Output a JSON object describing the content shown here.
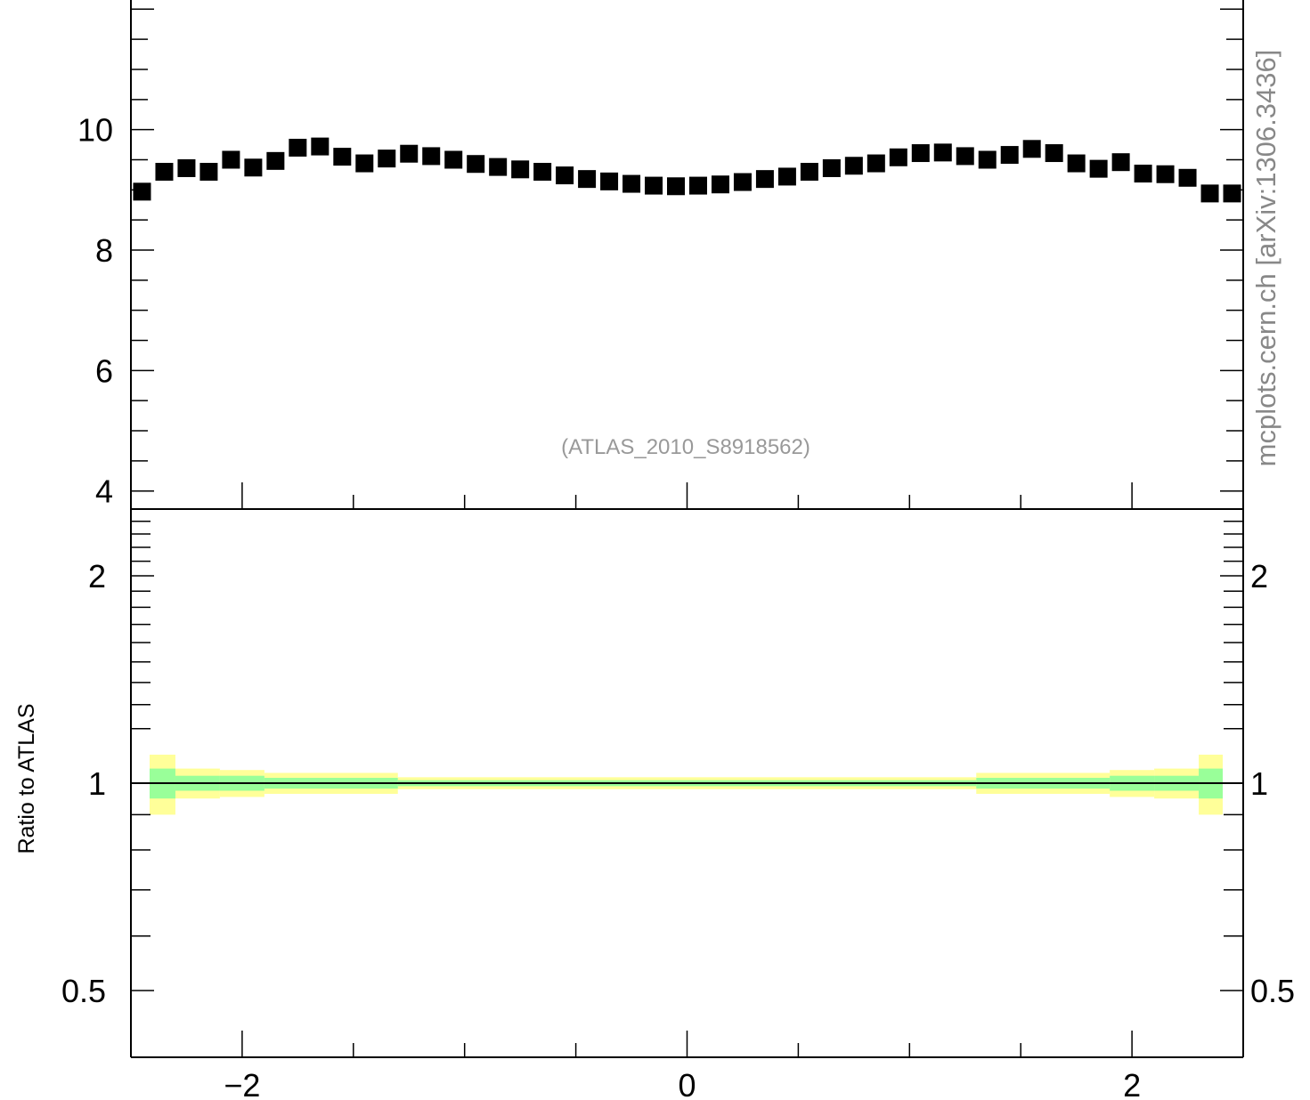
{
  "watermark": "mcplots.cern.ch [arXiv:1306.3436]",
  "analysis_label": "(ATLAS_2010_S8918562)",
  "chart_data": [
    {
      "type": "scatter",
      "panel": "main",
      "xlim": [
        -2.5,
        2.5
      ],
      "ylim": [
        3.7,
        12.3
      ],
      "yticks_major": [
        4,
        6,
        8,
        10
      ],
      "series": [
        {
          "marker": "square",
          "color": "#000000",
          "x": [
            -2.45,
            -2.35,
            -2.25,
            -2.15,
            -2.05,
            -1.95,
            -1.85,
            -1.75,
            -1.65,
            -1.55,
            -1.45,
            -1.35,
            -1.25,
            -1.15,
            -1.05,
            -0.95,
            -0.85,
            -0.75,
            -0.65,
            -0.55,
            -0.45,
            -0.35,
            -0.25,
            -0.15,
            -0.05,
            0.05,
            0.15,
            0.25,
            0.35,
            0.45,
            0.55,
            0.65,
            0.75,
            0.85,
            0.95,
            1.05,
            1.15,
            1.25,
            1.35,
            1.45,
            1.55,
            1.65,
            1.75,
            1.85,
            1.95,
            2.05,
            2.15,
            2.25,
            2.35,
            2.45
          ],
          "y": [
            8.97,
            9.3,
            9.36,
            9.3,
            9.5,
            9.37,
            9.48,
            9.7,
            9.72,
            9.55,
            9.44,
            9.52,
            9.6,
            9.56,
            9.5,
            9.43,
            9.38,
            9.34,
            9.3,
            9.24,
            9.18,
            9.14,
            9.1,
            9.07,
            9.06,
            9.07,
            9.09,
            9.13,
            9.18,
            9.22,
            9.3,
            9.36,
            9.4,
            9.44,
            9.54,
            9.61,
            9.62,
            9.56,
            9.5,
            9.58,
            9.68,
            9.61,
            9.44,
            9.35,
            9.46,
            9.27,
            9.26,
            9.2,
            8.94,
            8.94
          ]
        }
      ]
    },
    {
      "type": "area",
      "panel": "ratio",
      "ylabel": "Ratio to ATLAS",
      "xlim": [
        -2.5,
        2.5
      ],
      "ylim": [
        0.4,
        2.5
      ],
      "yscale": "log",
      "yticks_major": [
        0.5,
        1,
        2
      ],
      "xticks_major": [
        -2,
        0,
        2
      ],
      "x_tick_labels": [
        "−2",
        "0",
        "2"
      ],
      "reference_line": 1,
      "bins": [
        {
          "x0": -2.5,
          "x1": -2.3,
          "inner": [
            0.95,
            1.05
          ],
          "outer": [
            0.9,
            1.1
          ]
        },
        {
          "x0": -2.3,
          "x1": -2.1,
          "inner": [
            0.975,
            1.025
          ],
          "outer": [
            0.95,
            1.05
          ]
        },
        {
          "x0": -2.1,
          "x1": -1.9,
          "inner": [
            0.975,
            1.025
          ],
          "outer": [
            0.955,
            1.045
          ]
        },
        {
          "x0": -1.9,
          "x1": -1.3,
          "inner": [
            0.982,
            1.018
          ],
          "outer": [
            0.965,
            1.035
          ]
        },
        {
          "x0": -1.3,
          "x1": 1.3,
          "inner": [
            0.99,
            1.01
          ],
          "outer": [
            0.98,
            1.02
          ]
        },
        {
          "x0": 1.3,
          "x1": 1.9,
          "inner": [
            0.982,
            1.018
          ],
          "outer": [
            0.965,
            1.035
          ]
        },
        {
          "x0": 1.9,
          "x1": 2.1,
          "inner": [
            0.975,
            1.025
          ],
          "outer": [
            0.955,
            1.045
          ]
        },
        {
          "x0": 2.1,
          "x1": 2.3,
          "inner": [
            0.975,
            1.025
          ],
          "outer": [
            0.95,
            1.05
          ]
        },
        {
          "x0": 2.3,
          "x1": 2.5,
          "inner": [
            0.95,
            1.05
          ],
          "outer": [
            0.9,
            1.1
          ]
        }
      ],
      "colors": {
        "inner": "#99ff99",
        "outer": "#ffff99"
      }
    }
  ]
}
